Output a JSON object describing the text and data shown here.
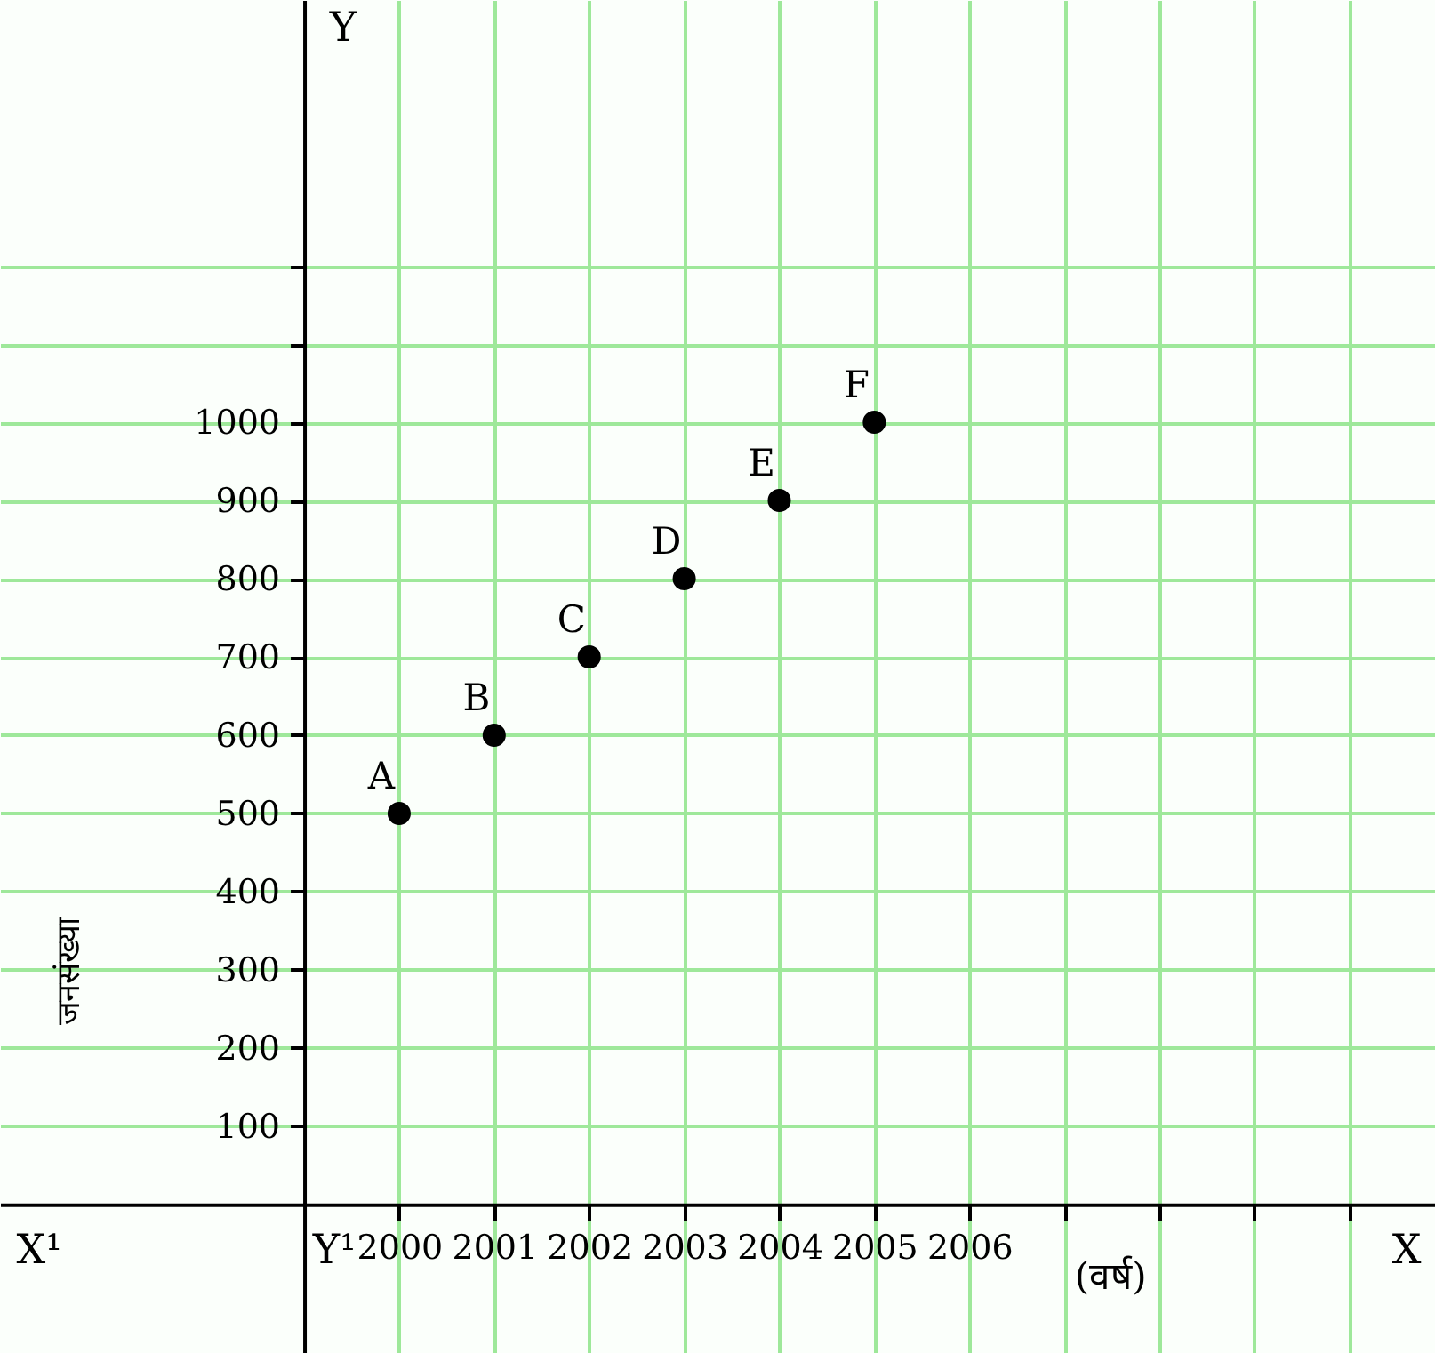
{
  "chart_data": {
    "type": "scatter",
    "xlabel": "(वर्ष)",
    "ylabel": "जनसंख्या",
    "x": [
      2000,
      2001,
      2002,
      2003,
      2004,
      2005
    ],
    "series": [
      {
        "color": "#000000",
        "values": [
          500,
          600,
          700,
          800,
          900,
          1000
        ]
      }
    ],
    "marker": "circle",
    "xlim": [
      1995.8,
      2010.9
    ],
    "ylim": [
      -190,
      1540
    ],
    "xticks": [
      2000,
      2001,
      2002,
      2003,
      2004,
      2005,
      2006,
      {
        "value": 2007,
        "label": null
      },
      {
        "value": 2008,
        "label": null
      },
      {
        "value": 2009,
        "label": null
      },
      {
        "value": 2010,
        "label": null
      }
    ],
    "yticks": [
      100,
      200,
      300,
      400,
      500,
      600,
      700,
      800,
      900,
      1000,
      {
        "value": 1100,
        "label": null
      },
      {
        "value": 1200,
        "label": null
      }
    ],
    "grid": true,
    "annotations": [
      {
        "text": "A",
        "x": 2000,
        "y": 500
      },
      {
        "text": "B",
        "x": 2001,
        "y": 600
      },
      {
        "text": "C",
        "x": 2002,
        "y": 700
      },
      {
        "text": "D",
        "x": 2003,
        "y": 800
      },
      {
        "text": "E",
        "x": 2004,
        "y": 900
      },
      {
        "text": "F",
        "x": 2005,
        "y": 1000
      },
      "X¹",
      "Y¹",
      "X",
      "Y"
    ]
  }
}
